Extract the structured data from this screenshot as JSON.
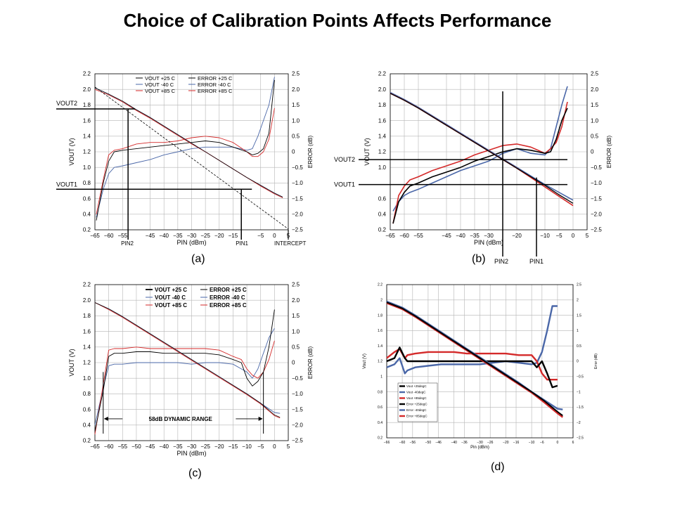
{
  "title": "Choice of Calibration Points Affects Performance",
  "colors": {
    "black": "#000000",
    "blue": "#4a67a8",
    "red": "#d42a2a",
    "grid": "#b5b5b5"
  },
  "chart_data": [
    {
      "id": "a",
      "caption": "(a)",
      "type": "line",
      "xlim": [
        -65,
        5
      ],
      "ylim": [
        0.2,
        2.2
      ],
      "y2lim": [
        -2.5,
        2.5
      ],
      "xticks": [
        "-65",
        "-60",
        "-55",
        "-45",
        "-40",
        "-35",
        "-30",
        "-25",
        "-20",
        "-15",
        "-5",
        "0",
        "5"
      ],
      "xtickvals": [
        -65,
        -60,
        -55,
        -45,
        -40,
        -35,
        -30,
        -25,
        -20,
        -15,
        -5,
        0,
        5
      ],
      "yticks": [
        "0.2",
        "0.4",
        "0.6",
        "0.8",
        "1.0",
        "1.2",
        "1.4",
        "1.6",
        "1.8",
        "2.0",
        "2.2"
      ],
      "y2ticks": [
        "-2.5",
        "-2.0",
        "-1.5",
        "-1.0",
        "-0.5",
        "0",
        "0.5",
        "1.0",
        "1.5",
        "2.0",
        "2.5"
      ],
      "xlabel": "PIN (dBm)",
      "ylabel": "VOUT (V)",
      "y2label": "ERROR (dB)",
      "legend": [
        "VOUT +25 C",
        "VOUT -40 C",
        "VOUT +85 C",
        "ERROR +25 C",
        "ERROR -40 C",
        "ERROR +85 C"
      ],
      "annotations": [
        "VOUT2",
        "VOUT1",
        "PIN2",
        "PIN1",
        "INTERCEPT"
      ],
      "calibration": {
        "pin2": -53,
        "pin1": -12,
        "vout2": 1.75,
        "vout1": 0.72
      },
      "vout": {
        "x": [
          -65,
          -60,
          -55,
          -50,
          -45,
          -40,
          -35,
          -30,
          -25,
          -20,
          -15,
          -10,
          -5,
          0,
          3
        ],
        "p25": [
          2.02,
          1.94,
          1.85,
          1.74,
          1.64,
          1.53,
          1.42,
          1.31,
          1.2,
          1.09,
          0.98,
          0.87,
          0.77,
          0.67,
          0.62
        ],
        "m40": [
          2.02,
          1.94,
          1.84,
          1.74,
          1.64,
          1.53,
          1.42,
          1.31,
          1.2,
          1.09,
          0.98,
          0.87,
          0.77,
          0.67,
          0.62
        ],
        "p85": [
          2.0,
          1.93,
          1.84,
          1.73,
          1.63,
          1.52,
          1.41,
          1.3,
          1.2,
          1.09,
          0.98,
          0.87,
          0.76,
          0.66,
          0.61
        ]
      },
      "intercept_line": {
        "x": [
          -65,
          5
        ],
        "y": [
          2.03,
          0.21
        ]
      },
      "error": {
        "x": [
          -64.5,
          -62,
          -60,
          -58,
          -55,
          -50,
          -45,
          -40,
          -35,
          -30,
          -25,
          -20,
          -15,
          -10,
          -8,
          -6,
          -4,
          -2,
          0
        ],
        "p25": [
          -2.2,
          -1.0,
          -0.3,
          0.0,
          0.05,
          0.1,
          0.15,
          0.2,
          0.25,
          0.3,
          0.35,
          0.3,
          0.15,
          0.0,
          -0.1,
          -0.05,
          0.1,
          0.6,
          2.3
        ],
        "m40": [
          -2.1,
          -1.2,
          -0.7,
          -0.5,
          -0.45,
          -0.35,
          -0.25,
          -0.1,
          0.0,
          0.1,
          0.15,
          0.15,
          0.15,
          0.05,
          0.1,
          0.5,
          1.0,
          1.5,
          2.4
        ],
        "p85": [
          -2.0,
          -0.9,
          -0.1,
          0.05,
          0.1,
          0.25,
          0.3,
          0.3,
          0.35,
          0.45,
          0.5,
          0.45,
          0.3,
          0.0,
          -0.15,
          -0.15,
          0.0,
          0.4,
          1.4
        ]
      }
    },
    {
      "id": "b",
      "caption": "(b)",
      "type": "line",
      "xlim": [
        -65,
        5
      ],
      "ylim": [
        0.2,
        2.2
      ],
      "y2lim": [
        -2.5,
        2.5
      ],
      "xticks": [
        "-65",
        "-60",
        "-55",
        "-45",
        "-40",
        "-35",
        "-30",
        "-20",
        "-10",
        "-5",
        "0",
        "5"
      ],
      "xtickvals": [
        -65,
        -60,
        -55,
        -45,
        -40,
        -35,
        -30,
        -20,
        -10,
        -5,
        0,
        5
      ],
      "yticks": [
        "0.2",
        "0.4",
        "0.6",
        "1.0",
        "1.2",
        "1.4",
        "1.6",
        "1.8",
        "2.0",
        "2.2"
      ],
      "ytickvals": [
        0.2,
        0.4,
        0.6,
        1.0,
        1.2,
        1.4,
        1.6,
        1.8,
        2.0,
        2.2
      ],
      "y2ticks": [
        "-2.5",
        "-2.0",
        "-1.5",
        "-1.0",
        "-0.5",
        "0",
        "0.5",
        "1.0",
        "1.5",
        "2.0",
        "2.5"
      ],
      "xlabel": "PIN (dBm)",
      "ylabel": "VOUT (V)",
      "y2label": "ERROR (dB)",
      "annotations": [
        "VOUT2",
        "VOUT1",
        "PIN2",
        "PIN1"
      ],
      "calibration": {
        "pin2": -25,
        "pin1": -13,
        "vout2": 1.1,
        "vout1": 0.78
      },
      "vout": {
        "x": [
          -65,
          -60,
          -55,
          -50,
          -45,
          -40,
          -35,
          -30,
          -25,
          -20,
          -15,
          -10,
          -5,
          0
        ],
        "p25": [
          1.95,
          1.86,
          1.76,
          1.65,
          1.54,
          1.43,
          1.32,
          1.21,
          1.1,
          0.99,
          0.88,
          0.77,
          0.65,
          0.54
        ],
        "m40": [
          1.96,
          1.87,
          1.77,
          1.66,
          1.55,
          1.44,
          1.33,
          1.22,
          1.11,
          1.0,
          0.89,
          0.78,
          0.68,
          0.58
        ],
        "p85": [
          1.95,
          1.86,
          1.76,
          1.65,
          1.54,
          1.43,
          1.32,
          1.21,
          1.1,
          0.99,
          0.87,
          0.75,
          0.63,
          0.51
        ]
      },
      "error": {
        "x": [
          -64,
          -62,
          -60,
          -58,
          -55,
          -50,
          -45,
          -40,
          -35,
          -30,
          -25,
          -20,
          -15,
          -10,
          -8,
          -6,
          -4,
          -2
        ],
        "p25": [
          -2.3,
          -1.6,
          -1.3,
          -1.1,
          -1.0,
          -0.8,
          -0.65,
          -0.5,
          -0.3,
          -0.15,
          0.0,
          0.1,
          0.05,
          -0.05,
          0.0,
          0.4,
          1.0,
          1.4
        ],
        "m40": [
          -1.9,
          -1.6,
          -1.4,
          -1.3,
          -1.2,
          -1.0,
          -0.8,
          -0.6,
          -0.45,
          -0.3,
          -0.05,
          0.1,
          -0.05,
          -0.1,
          0.1,
          0.8,
          1.5,
          2.1
        ],
        "p85": [
          -2.3,
          -1.4,
          -1.1,
          -0.9,
          -0.8,
          -0.6,
          -0.45,
          -0.3,
          -0.1,
          0.05,
          0.2,
          0.25,
          0.15,
          -0.05,
          0.1,
          0.3,
          0.8,
          1.6
        ]
      }
    },
    {
      "id": "c",
      "caption": "(c)",
      "type": "line",
      "xlim": [
        -65,
        5
      ],
      "ylim": [
        0.2,
        2.2
      ],
      "y2lim": [
        -2.5,
        2.5
      ],
      "xticks": [
        "-65",
        "-60",
        "-55",
        "-50",
        "-45",
        "-40",
        "-35",
        "-30",
        "-25",
        "-20",
        "-15",
        "-10",
        "-5",
        "0",
        "5"
      ],
      "yticks": [
        "0.2",
        "0.4",
        "0.6",
        "0.8",
        "1.0",
        "1.2",
        "1.4",
        "1.6",
        "1.8",
        "2.0",
        "2.2"
      ],
      "y2ticks": [
        "-2.5",
        "-2.0",
        "-1.5",
        "-1.0",
        "-0.5",
        "0",
        "0.5",
        "1.0",
        "1.5",
        "2.0",
        "2.5"
      ],
      "xlabel": "PIN (dBm)",
      "ylabel": "VOUT (V)",
      "y2label": "ERROR (dB)",
      "legend": [
        "VOUT +25 C",
        "VOUT -40 C",
        "VOUT +85 C",
        "ERROR +25 C",
        "ERROR -40 C",
        "ERROR +85 C"
      ],
      "annotations": [
        "58dB DYNAMIC RANGE"
      ],
      "dynamic_range": [
        -62,
        -4
      ],
      "vout": {
        "x": [
          -65,
          -60,
          -55,
          -50,
          -45,
          -40,
          -35,
          -30,
          -25,
          -20,
          -15,
          -10,
          -5,
          0,
          2
        ],
        "p25": [
          1.97,
          1.89,
          1.79,
          1.68,
          1.57,
          1.46,
          1.35,
          1.24,
          1.13,
          1.02,
          0.91,
          0.8,
          0.68,
          0.53,
          0.5
        ],
        "m40": [
          1.97,
          1.89,
          1.79,
          1.68,
          1.57,
          1.46,
          1.35,
          1.24,
          1.13,
          1.02,
          0.91,
          0.8,
          0.68,
          0.56,
          0.55
        ],
        "p85": [
          1.97,
          1.88,
          1.78,
          1.67,
          1.56,
          1.45,
          1.34,
          1.23,
          1.12,
          1.01,
          0.9,
          0.79,
          0.67,
          0.52,
          0.49
        ]
      },
      "error": {
        "x": [
          -65,
          -62,
          -60,
          -58,
          -55,
          -50,
          -45,
          -40,
          -35,
          -30,
          -25,
          -20,
          -15,
          -12,
          -10,
          -8,
          -6,
          -4,
          -2,
          0
        ],
        "p25": [
          -2.2,
          -0.9,
          0.2,
          0.3,
          0.3,
          0.35,
          0.35,
          0.3,
          0.3,
          0.3,
          0.3,
          0.25,
          0.1,
          0.0,
          -0.5,
          -0.75,
          -0.6,
          -0.3,
          0.5,
          1.7
        ],
        "m40": [
          -2.0,
          -0.8,
          -0.1,
          -0.05,
          -0.05,
          0.0,
          0.0,
          0.0,
          0.0,
          -0.05,
          0.0,
          0.0,
          -0.05,
          -0.2,
          -0.3,
          -0.5,
          -0.2,
          0.3,
          0.8,
          1.1
        ],
        "p85": [
          -2.3,
          -0.7,
          0.4,
          0.45,
          0.45,
          0.5,
          0.45,
          0.45,
          0.45,
          0.45,
          0.45,
          0.4,
          0.2,
          0.1,
          -0.2,
          -0.4,
          -0.5,
          -0.3,
          0.1,
          0.7
        ]
      }
    },
    {
      "id": "d",
      "caption": "(d)",
      "type": "line",
      "xlim": [
        -66,
        6
      ],
      "ylim": [
        0.2,
        2.2
      ],
      "y2lim": [
        -2.5,
        2.5
      ],
      "xticks": [
        "-66",
        "-60",
        "-56",
        "-50",
        "-46",
        "-40",
        "-36",
        "-30",
        "-26",
        "-20",
        "-16",
        "-10",
        "-6",
        "0",
        "6"
      ],
      "yticks": [
        "0.2",
        "0.4",
        "0.6",
        "0.8",
        "1",
        "1.2",
        "1.4",
        "1.6",
        "1.8",
        "2",
        "2.2"
      ],
      "y2ticks": [
        "-2.5",
        "-2",
        "-1.5",
        "-1",
        "-0.5",
        "0",
        "0.5",
        "1",
        "1.5",
        "2",
        "2.5"
      ],
      "xlabel": "Pin (dBm)",
      "ylabel": "Vout (V)",
      "y2label": "Error (dB)",
      "legend": [
        "Vout +25degC",
        "Vout -40degC",
        "Vout +85degC",
        "Error +25degC",
        "Error -40degC",
        "Error +85degC"
      ],
      "vout": {
        "x": [
          -66,
          -60,
          -55,
          -50,
          -45,
          -40,
          -35,
          -30,
          -25,
          -20,
          -15,
          -10,
          -5,
          0,
          2
        ],
        "p25": [
          1.97,
          1.89,
          1.79,
          1.68,
          1.57,
          1.46,
          1.35,
          1.24,
          1.13,
          1.02,
          0.91,
          0.8,
          0.68,
          0.54,
          0.49
        ],
        "m40": [
          1.98,
          1.9,
          1.8,
          1.69,
          1.58,
          1.47,
          1.36,
          1.25,
          1.14,
          1.03,
          0.92,
          0.8,
          0.69,
          0.58,
          0.57
        ],
        "p85": [
          1.96,
          1.88,
          1.78,
          1.67,
          1.56,
          1.45,
          1.34,
          1.23,
          1.12,
          1.01,
          0.9,
          0.79,
          0.66,
          0.52,
          0.47
        ]
      },
      "error": {
        "x": [
          -66,
          -63,
          -61,
          -59,
          -58,
          -55,
          -50,
          -45,
          -40,
          -35,
          -30,
          -25,
          -20,
          -15,
          -10,
          -8,
          -6,
          -4,
          -2,
          0
        ],
        "p25": [
          0.0,
          0.1,
          0.45,
          0.1,
          0.0,
          0.0,
          0.0,
          0.0,
          0.0,
          0.0,
          0.0,
          0.0,
          0.0,
          0.0,
          0.0,
          -0.2,
          0.0,
          -0.4,
          -0.85,
          -0.8
        ],
        "m40": [
          -0.2,
          -0.1,
          0.1,
          -0.4,
          -0.3,
          -0.2,
          -0.15,
          -0.1,
          -0.1,
          -0.1,
          -0.1,
          -0.05,
          0.0,
          -0.05,
          -0.1,
          -0.05,
          0.3,
          1.0,
          1.8,
          1.8
        ],
        "p85": [
          0.1,
          0.3,
          0.4,
          0.1,
          0.2,
          0.25,
          0.3,
          0.3,
          0.3,
          0.25,
          0.25,
          0.25,
          0.25,
          0.2,
          0.2,
          0.0,
          -0.4,
          -0.6,
          -0.6,
          -0.6
        ]
      }
    }
  ]
}
